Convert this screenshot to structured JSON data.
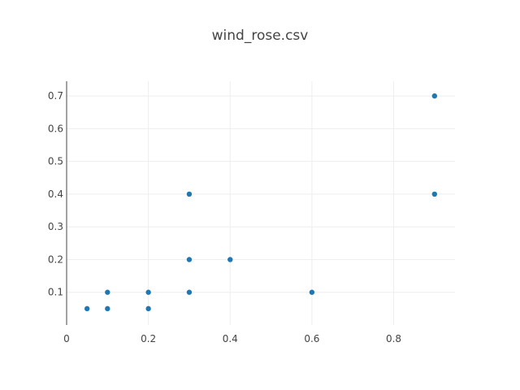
{
  "chart_data": {
    "type": "scatter",
    "title": "wind_rose.csv",
    "xlabel": "",
    "ylabel": "",
    "xlim": [
      0,
      0.95
    ],
    "ylim": [
      0,
      0.745
    ],
    "x_ticks": [
      0,
      0.2,
      0.4,
      0.6,
      0.8
    ],
    "x_tick_labels": [
      "0",
      "0.2",
      "0.4",
      "0.6",
      "0.8"
    ],
    "y_ticks": [
      0.1,
      0.2,
      0.3,
      0.4,
      0.5,
      0.6,
      0.7
    ],
    "y_tick_labels": [
      "0.1",
      "0.2",
      "0.3",
      "0.4",
      "0.5",
      "0.6",
      "0.7"
    ],
    "grid": true,
    "marker_color": "#1f77b4",
    "series": [
      {
        "points": [
          {
            "x": 0.05,
            "y": 0.05
          },
          {
            "x": 0.1,
            "y": 0.05
          },
          {
            "x": 0.1,
            "y": 0.1
          },
          {
            "x": 0.2,
            "y": 0.05
          },
          {
            "x": 0.2,
            "y": 0.1
          },
          {
            "x": 0.3,
            "y": 0.1
          },
          {
            "x": 0.3,
            "y": 0.2
          },
          {
            "x": 0.3,
            "y": 0.4
          },
          {
            "x": 0.4,
            "y": 0.2
          },
          {
            "x": 0.6,
            "y": 0.1
          },
          {
            "x": 0.9,
            "y": 0.4
          },
          {
            "x": 0.9,
            "y": 0.7
          }
        ]
      }
    ]
  }
}
